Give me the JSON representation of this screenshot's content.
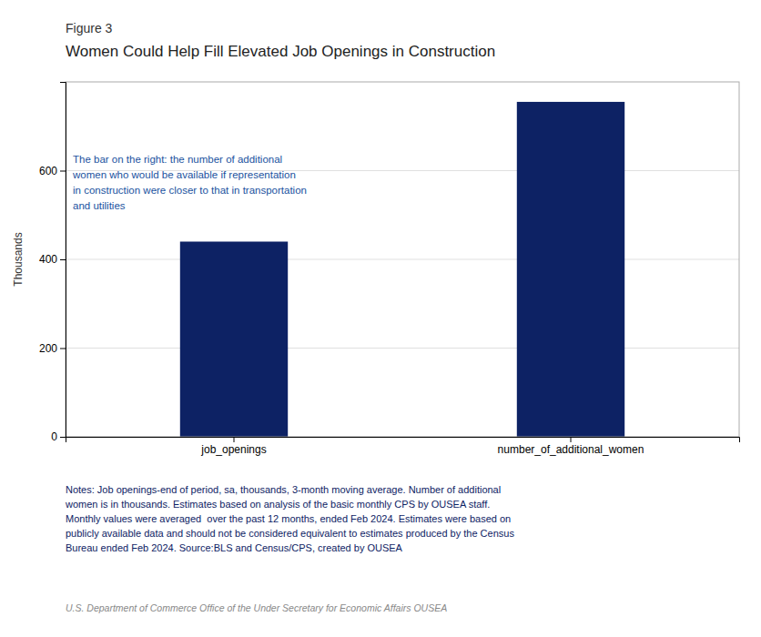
{
  "chart_data": {
    "type": "bar",
    "title": "Women Could Help Fill Elevated Job Openings in Construction",
    "annotations": [
      "Figure 3",
      "The bar on the right: the number of additional\nwomen who would be available if representation\nin construction were closer to that in transportation\nand utilities",
      "Notes: Job openings-end of period, sa, thousands, 3-month moving average. Number of additional\nwomen is in thousands. Estimates based on analysis of the basic monthly CPS by OUSEA staff.\nMonthly values were averaged  over the past 12 months, ended Feb 2024. Estimates were based on\npublicly available data and should not be considered equivalent to estimates produced by the Census\nBureau ended Feb 2024. Source:BLS and Census/CPS, created by OUSEA",
      "U.S. Department of Commerce Office of the Under Secretary for Economic Affairs OUSEA"
    ],
    "categories": [
      "job_openings",
      "number_of_additional_women"
    ],
    "values": [
      440,
      755
    ],
    "color": "#0d2264",
    "ylabel": "Thousands",
    "ylim": [
      0,
      800
    ],
    "yticks": [
      0,
      200,
      400,
      600
    ],
    "grid": true
  }
}
